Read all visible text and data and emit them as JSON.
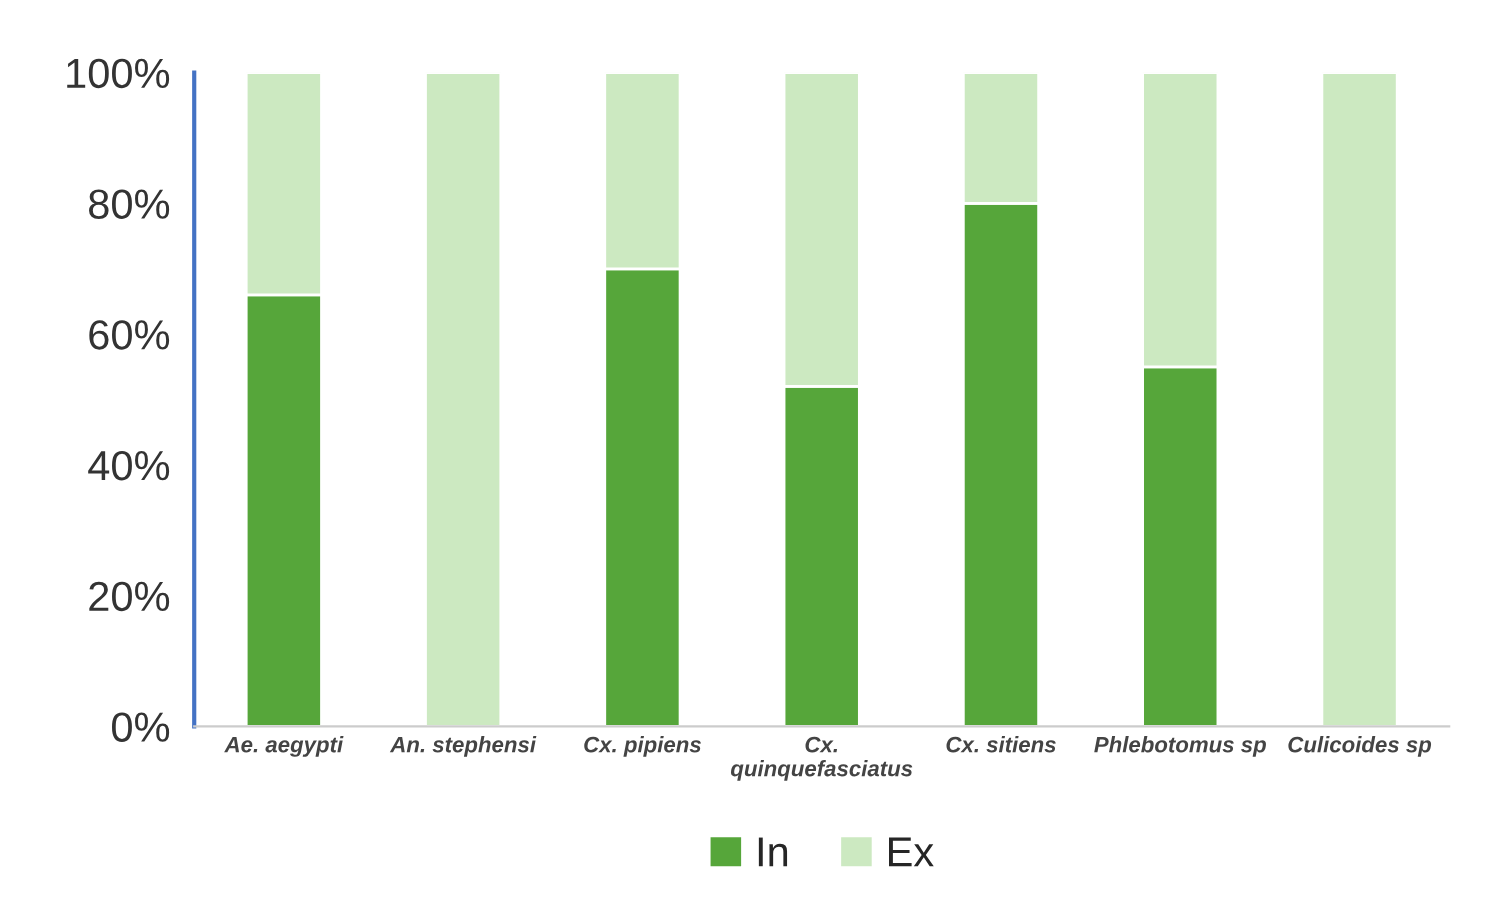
{
  "chart_data": {
    "type": "bar",
    "stacked": true,
    "categories": [
      "Ae. aegypti",
      "An. stephensi",
      "Cx. pipiens",
      "Cx.\nquinquefasciatus",
      "Cx. sitiens",
      "Phlebotomus sp",
      "Culicoides sp"
    ],
    "series": [
      {
        "name": "In",
        "color": "#56a63a",
        "values": [
          66,
          0,
          70,
          52,
          80,
          55,
          0
        ]
      },
      {
        "name": "Ex",
        "color": "#cce9c1",
        "values": [
          34,
          100,
          30,
          48,
          20,
          45,
          100
        ]
      }
    ],
    "ylim": [
      0,
      100
    ],
    "yticks": [
      {
        "value": 0,
        "label": "0%"
      },
      {
        "value": 20,
        "label": "20%"
      },
      {
        "value": 40,
        "label": "40%"
      },
      {
        "value": 60,
        "label": "60%"
      },
      {
        "value": 80,
        "label": "80%"
      },
      {
        "value": 100,
        "label": "100%"
      }
    ],
    "grid": false,
    "legend": "bottom"
  }
}
